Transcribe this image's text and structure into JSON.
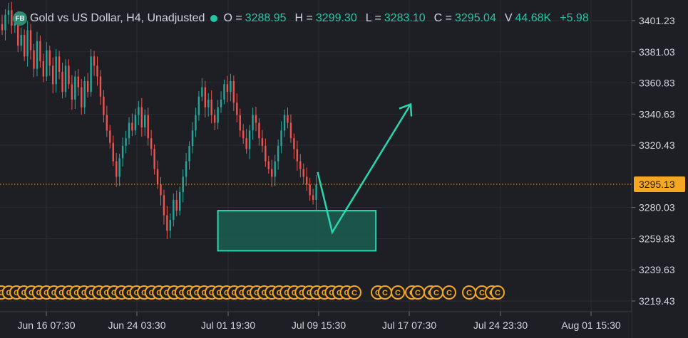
{
  "header": {
    "logo": "FB",
    "title": "Gold vs US Dollar, H4, Unadjusted",
    "open_label": "O =",
    "open_value": "3288.95",
    "high_label": "H =",
    "high_value": "3299.30",
    "low_label": "L =",
    "low_value": "3283.10",
    "close_label": "C =",
    "close_value": "3295.04",
    "volume_label": "V",
    "volume_value": "44.68K",
    "change": "+5.98"
  },
  "colors": {
    "background": "#1e1f24",
    "grid": "#2a2c33",
    "up": "#26a69a",
    "down": "#ef5350",
    "accent": "#2ad6b0",
    "zone_fill": "#1b5e50",
    "event_marker": "#f5a623",
    "price_tag": "#f5a623"
  },
  "chart_data": {
    "type": "candlestick",
    "symbol": "Gold vs US Dollar",
    "timeframe": "H4",
    "y_ticks": [
      3401.23,
      3381.03,
      3360.83,
      3340.63,
      3320.43,
      3280.03,
      3259.83,
      3239.63,
      3219.43
    ],
    "ylim": [
      3212,
      3410
    ],
    "current_price": "3295.13",
    "x_ticks": [
      "Jun 16 07:30",
      "Jun 24 03:30",
      "Jul 01 19:30",
      "Jul 09 15:30",
      "Jul 17 07:30",
      "Jul 24 23:30",
      "Aug 01 15:30"
    ],
    "last_candle": {
      "open": 3288.95,
      "high": 3299.3,
      "low": 3283.1,
      "close": 3295.04
    },
    "path_closes": [
      3395,
      3405,
      3408,
      3398,
      3402,
      3385,
      3392,
      3378,
      3395,
      3382,
      3370,
      3388,
      3375,
      3365,
      3382,
      3372,
      3360,
      3378,
      3368,
      3355,
      3372,
      3360,
      3350,
      3365,
      3358,
      3345,
      3362,
      3355,
      3378,
      3372,
      3365,
      3352,
      3340,
      3330,
      3322,
      3310,
      3300,
      3312,
      3320,
      3325,
      3335,
      3330,
      3340,
      3345,
      3332,
      3340,
      3325,
      3318,
      3305,
      3295,
      3288,
      3275,
      3265,
      3272,
      3285,
      3278,
      3290,
      3300,
      3310,
      3320,
      3330,
      3340,
      3352,
      3358,
      3345,
      3350,
      3340,
      3335,
      3345,
      3350,
      3360,
      3355,
      3362,
      3348,
      3340,
      3330,
      3325,
      3318,
      3330,
      3340,
      3335,
      3325,
      3320,
      3310,
      3305,
      3300,
      3310,
      3320,
      3330,
      3340,
      3335,
      3325,
      3318,
      3310,
      3305,
      3300,
      3295,
      3288,
      3285,
      3295
    ],
    "demand_zone": {
      "top": 3278,
      "bottom": 3252,
      "start_candle": 68,
      "end_time_fraction": 0.595
    },
    "projection": {
      "from": 3303,
      "low": 3264,
      "target": 3347
    },
    "event_marker_label": "C",
    "event_marker_count": 53
  }
}
